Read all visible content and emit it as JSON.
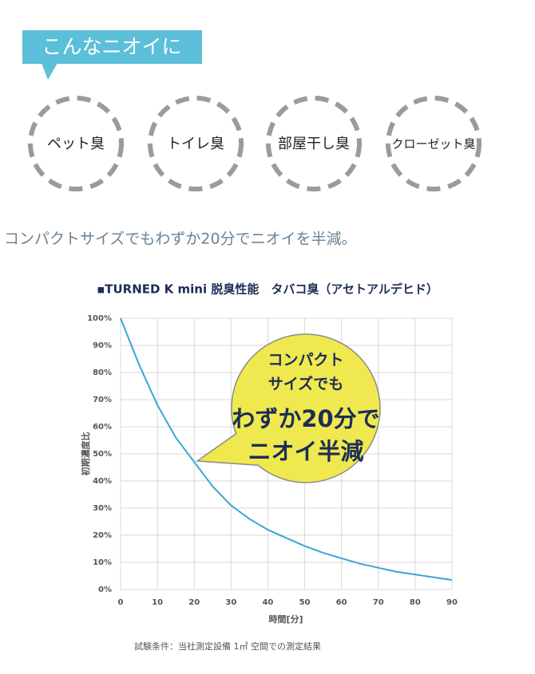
{
  "header": {
    "label": "こんなニオイに",
    "items": [
      "ペット臭",
      "トイレ臭",
      "部屋干し臭",
      "クローゼット臭"
    ]
  },
  "tagline": "コンパクトサイズでもわずか20分でニオイを半減。",
  "chart_data": {
    "type": "line",
    "title": "▪TURNED K mini  脱臭性能　タバコ臭（アセトアルデヒド）",
    "x_label": "時間[分]",
    "y_label": "初期濃度比",
    "x": [
      0,
      5,
      10,
      15,
      20,
      25,
      30,
      35,
      40,
      45,
      50,
      55,
      60,
      65,
      70,
      75,
      80,
      85,
      90
    ],
    "series": [
      {
        "name": "タバコ臭",
        "color": "#3aa6d6",
        "values": [
          100,
          83,
          68,
          56,
          47,
          38,
          31,
          26,
          22,
          19,
          16,
          13.5,
          11.5,
          9.5,
          8,
          6.5,
          5.5,
          4.5,
          3.5
        ]
      }
    ],
    "xlim": [
      0,
      90
    ],
    "xticks": [
      0,
      10,
      20,
      30,
      40,
      50,
      60,
      70,
      80,
      90
    ],
    "ylim": [
      0,
      100
    ],
    "yticks": [
      {
        "value": 0,
        "label": "0%"
      },
      {
        "value": 10,
        "label": "10%"
      },
      {
        "value": 20,
        "label": "20%"
      },
      {
        "value": 30,
        "label": "30%"
      },
      {
        "value": 40,
        "label": "40%"
      },
      {
        "value": 50,
        "label": "50%"
      },
      {
        "value": 60,
        "label": "60%"
      },
      {
        "value": 70,
        "label": "70%"
      },
      {
        "value": 80,
        "label": "80%"
      },
      {
        "value": 90,
        "label": "90%"
      },
      {
        "value": 100,
        "label": "100%"
      }
    ],
    "grid": true,
    "annotations": [
      "コンパクト",
      "サイズでも",
      "わずか20分で",
      "ニオイ半減"
    ],
    "note": "試験条件：当社測定設備 1㎥ 空間での測定結果"
  }
}
